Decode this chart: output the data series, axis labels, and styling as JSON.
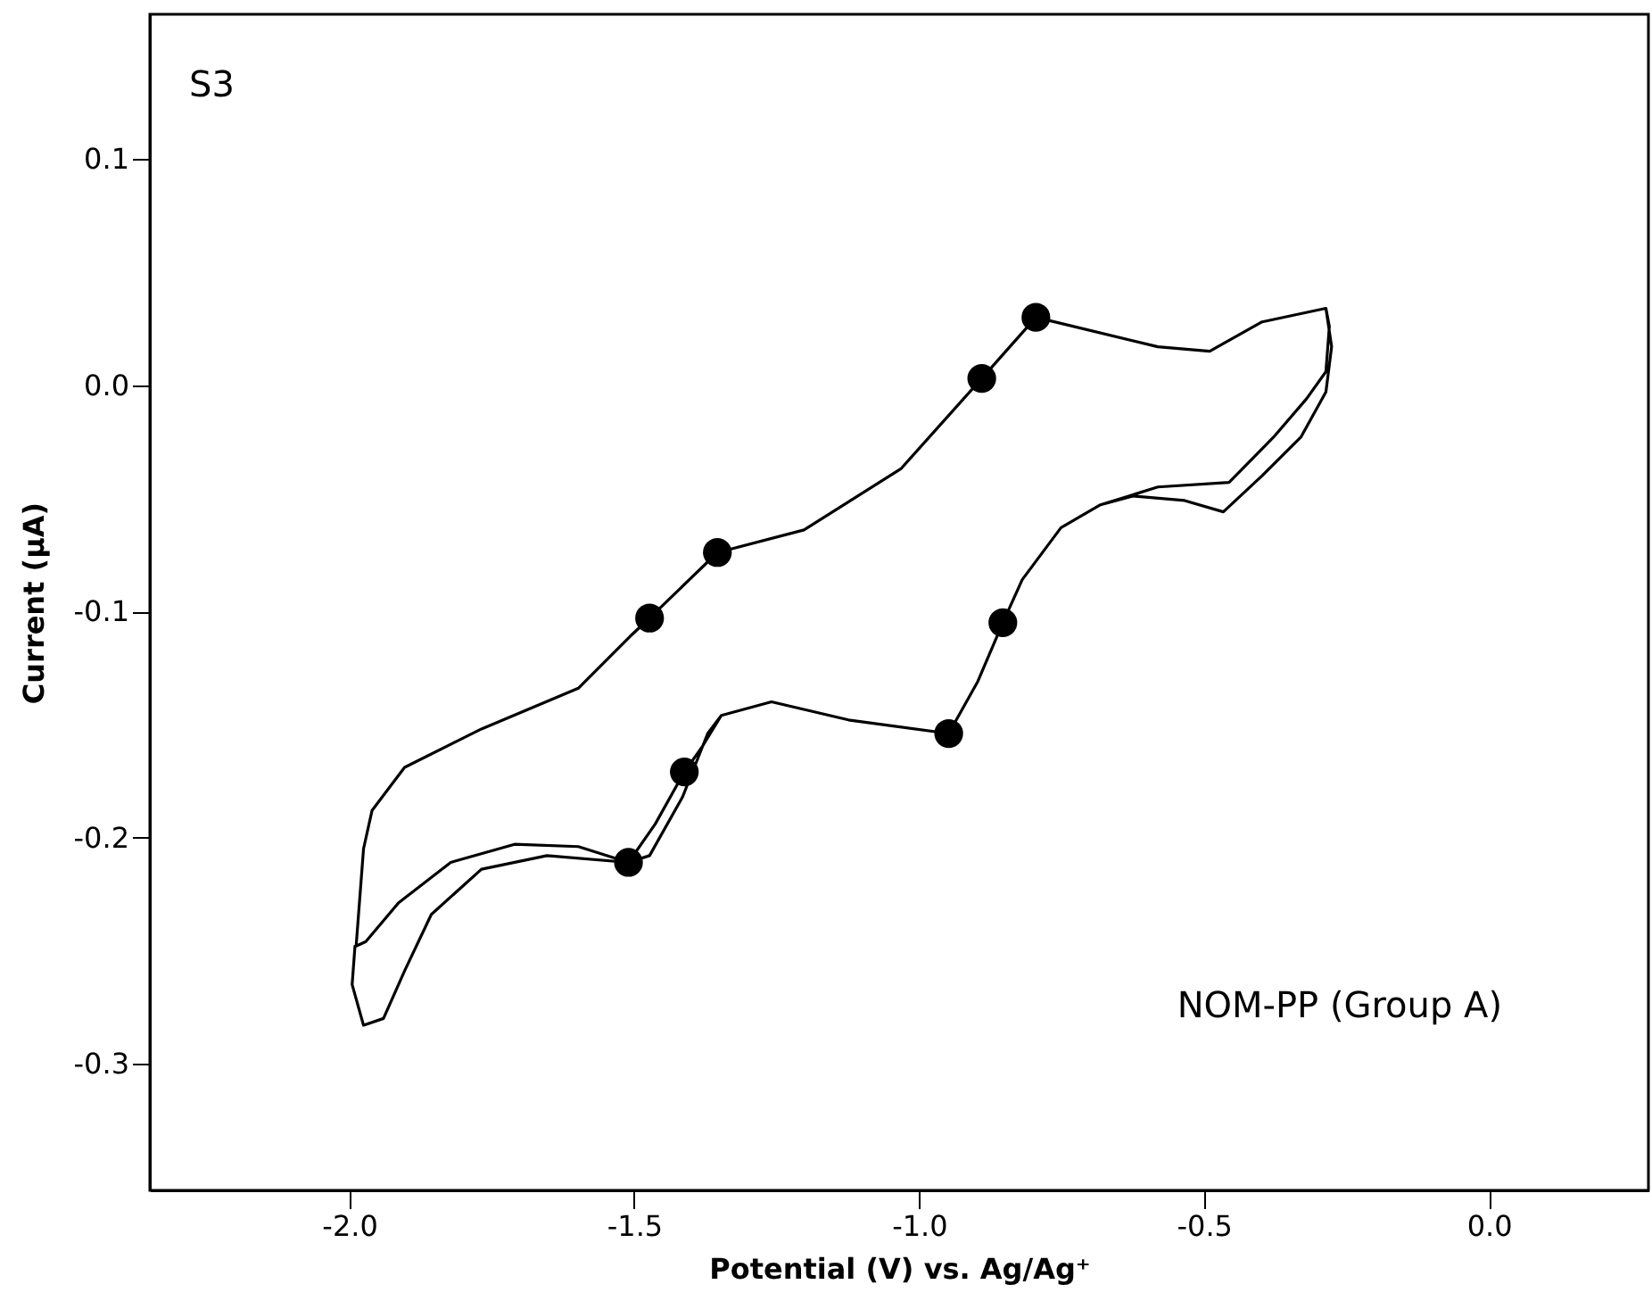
{
  "chart_data": {
    "type": "line",
    "xlabel": "Potential (V) vs. Ag/Ag⁺",
    "ylabel": "Current (µA)",
    "annotations": [
      "S3",
      "NOM-PP (Group A)"
    ],
    "xlim": [
      -2.35,
      0.28
    ],
    "ylim": [
      -0.356,
      0.164
    ],
    "xticks": [
      {
        "value": -2.0,
        "label": "-2.0"
      },
      {
        "value": -1.5,
        "label": "-1.5"
      },
      {
        "value": -1.0,
        "label": "-1.0"
      },
      {
        "value": -0.5,
        "label": "-0.5"
      },
      {
        "value": 0.0,
        "label": "0.0"
      }
    ],
    "yticks": [
      {
        "value": 0.1,
        "label": "0.1"
      },
      {
        "value": 0.0,
        "label": "0.0"
      },
      {
        "value": -0.1,
        "label": "-0.1"
      },
      {
        "value": -0.2,
        "label": "-0.2"
      },
      {
        "value": -0.3,
        "label": "-0.3"
      }
    ],
    "grid": false,
    "legend": false,
    "line_style": "solid",
    "marker": "none",
    "series": [
      {
        "color": "#000000",
        "x": [
          -1.988,
          -1.975,
          -1.96,
          -1.903,
          -1.768,
          -1.598,
          -1.507,
          -1.473,
          -1.354,
          -1.202,
          -1.032,
          -0.89,
          -0.795,
          -0.581,
          -0.49,
          -0.398,
          -0.286,
          -0.28,
          -0.286,
          -0.32,
          -0.378,
          -0.456,
          -0.581,
          -0.683,
          -0.751,
          -0.819,
          -0.853,
          -0.897,
          -0.948,
          -1.124,
          -1.259,
          -1.347,
          -1.381,
          -1.412,
          -1.463,
          -1.51,
          -1.598,
          -1.71,
          -1.822,
          -1.914,
          -1.971,
          -1.988,
          -1.99,
          -1.995,
          -1.975,
          -1.94,
          -1.903,
          -1.856,
          -1.768,
          -1.653,
          -1.51,
          -1.473,
          -1.415,
          -1.371,
          -1.347,
          -1.259,
          -1.124,
          -0.948,
          -0.897,
          -0.853,
          -0.819,
          -0.751,
          -0.683,
          -0.625,
          -0.534,
          -0.466,
          -0.398,
          -0.33,
          -0.286,
          -0.276,
          -0.286
        ],
        "values": [
          -0.248,
          -0.205,
          -0.188,
          -0.169,
          -0.152,
          -0.134,
          -0.111,
          -0.103,
          -0.074,
          -0.064,
          -0.037,
          0.003,
          0.03,
          0.017,
          0.015,
          0.028,
          0.034,
          0.026,
          0.006,
          -0.006,
          -0.023,
          -0.043,
          -0.045,
          -0.053,
          -0.063,
          -0.086,
          -0.105,
          -0.131,
          -0.154,
          -0.148,
          -0.14,
          -0.146,
          -0.16,
          -0.171,
          -0.194,
          -0.211,
          -0.204,
          -0.203,
          -0.211,
          -0.229,
          -0.246,
          -0.248,
          -0.248,
          -0.265,
          -0.283,
          -0.28,
          -0.259,
          -0.234,
          -0.214,
          -0.208,
          -0.211,
          -0.208,
          -0.182,
          -0.154,
          -0.146,
          -0.14,
          -0.148,
          -0.154,
          -0.131,
          -0.105,
          -0.086,
          -0.063,
          -0.053,
          -0.049,
          -0.051,
          -0.056,
          -0.04,
          -0.023,
          -0.003,
          0.017,
          0.034
        ]
      },
      {
        "type": "scatter",
        "marker": "circle",
        "color": "#000000",
        "x": [
          -1.473,
          -1.354,
          -0.89,
          -0.795,
          -0.853,
          -0.948,
          -1.412,
          -1.51
        ],
        "values": [
          -0.103,
          -0.074,
          0.003,
          0.03,
          -0.105,
          -0.154,
          -0.171,
          -0.211
        ]
      }
    ]
  }
}
